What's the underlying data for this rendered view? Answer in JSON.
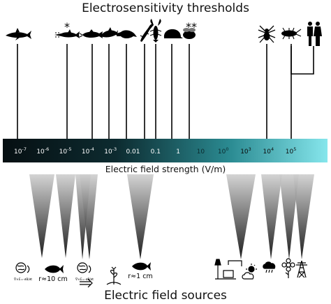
{
  "title": "Electrosensitivity thresholds",
  "bottom_title": "Electric field sources",
  "axis": {
    "label": "Electric field strength (V/m)",
    "ticks": [
      {
        "label": "10-7",
        "exp": -7
      },
      {
        "label": "10-6",
        "exp": -6
      },
      {
        "label": "10-5",
        "exp": -5
      },
      {
        "label": "10-4",
        "exp": -4
      },
      {
        "label": "10-3",
        "exp": -3
      },
      {
        "label": "0.01",
        "exp": -2
      },
      {
        "label": "0.1",
        "exp": -1
      },
      {
        "label": "1",
        "exp": 0
      },
      {
        "label": "10",
        "exp": 1
      },
      {
        "label": "100",
        "exp": 2
      },
      {
        "label": "103",
        "exp": 3
      },
      {
        "label": "104",
        "exp": 4
      },
      {
        "label": "105",
        "exp": 5
      }
    ],
    "colors": {
      "dark": "#07151a",
      "mid": "#1f7078",
      "light": "#7fe0e6"
    }
  },
  "animals": [
    {
      "name": "shark",
      "exp": -7,
      "icon": "shark-icon"
    },
    {
      "name": "sawfish",
      "exp": -5,
      "icon": "sawfish-icon",
      "mark": "*"
    },
    {
      "name": "catfish",
      "exp": -4,
      "icon": "catfish-icon"
    },
    {
      "name": "dolphin",
      "exp": -3,
      "icon": "dolphin-icon"
    },
    {
      "name": "platypus",
      "exp": -2,
      "icon": "platypus-icon"
    },
    {
      "name": "salamander",
      "exp": -1.6,
      "icon": "salamander-icon"
    },
    {
      "name": "crayfish",
      "exp": -1,
      "icon": "crayfish-icon"
    },
    {
      "name": "echidna",
      "exp": -0.5,
      "icon": "echidna-icon"
    },
    {
      "name": "bumblebee",
      "exp": 0,
      "icon": "bee-icon",
      "mark": "**"
    },
    {
      "name": "spider",
      "exp": 3.15,
      "icon": "spider-icon"
    },
    {
      "name": "cockroach",
      "exp": 4,
      "icon": "cockroach-icon"
    },
    {
      "name": "humans",
      "exp": 4,
      "icon": "humans-icon"
    }
  ],
  "sources": [
    {
      "name": "geoelectric field",
      "exp": -5.8,
      "icon": "globe-equation-icon"
    },
    {
      "name": "fish at 10 cm",
      "exp": -5.2,
      "icon": "fish-icon",
      "label": "r≈10 cm"
    },
    {
      "name": "geoelectric field 2",
      "exp": -4.7,
      "icon": "globe-equation-icon"
    },
    {
      "name": "ocean current",
      "exp": -4.3,
      "icon": "current-icon"
    },
    {
      "name": "plant",
      "exp": -3.9,
      "icon": "plant-icon"
    },
    {
      "name": "fish at 1 cm",
      "exp": -2.5,
      "icon": "fish-icon",
      "label": "r≈1 cm"
    },
    {
      "name": "household appliances",
      "exp": 2,
      "icon": "appliances-icon"
    },
    {
      "name": "weather",
      "exp": 3.1,
      "icon": "weather-icon"
    },
    {
      "name": "flower",
      "exp": 3.9,
      "icon": "flower-icon"
    },
    {
      "name": "power line",
      "exp": 4.4,
      "icon": "pylon-icon"
    }
  ]
}
